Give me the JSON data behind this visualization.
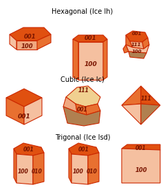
{
  "title_hex": "Hexagonal (Ice Ih)",
  "title_cub": "Cubic (Ice Ic)",
  "title_tri": "Trigonal (Ice Isd)",
  "bg_color": "#ffffff",
  "c_dark": "#e05010",
  "c_mid": "#e87030",
  "c_light": "#f0a880",
  "c_pale": "#f5c0a0",
  "c_tan": "#b08050",
  "c_yellow": "#f0d090",
  "label_color": "#7a1500",
  "edge_color": "#cc2800",
  "edge_lw": 0.8
}
